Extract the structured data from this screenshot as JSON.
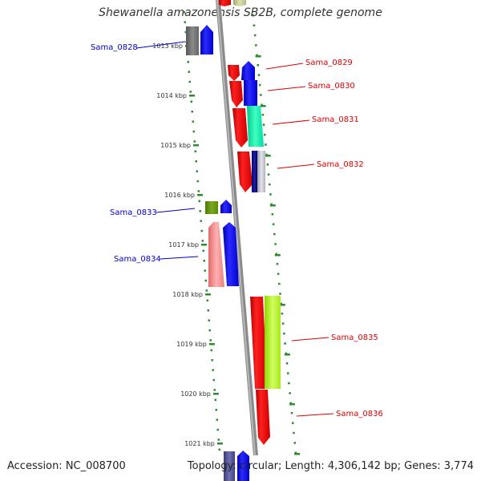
{
  "title": "Shewanella amazonensis SB2B, complete genome",
  "footer": {
    "accession": "Accession: NC_008700",
    "summary": "Topology: circular; Length: 4,306,142 bp; Genes: 3,774"
  },
  "colors": {
    "backbone": "#8a8a8a",
    "tick": "#2e8b2e",
    "blue_label": "#0000cc",
    "red_label": "#dd0000"
  },
  "ruler": [
    {
      "label": "1013 kbp"
    },
    {
      "label": "1014 kbp"
    },
    {
      "label": "1015 kbp"
    },
    {
      "label": "1016 kbp"
    },
    {
      "label": "1017 kbp"
    },
    {
      "label": "1018 kbp"
    },
    {
      "label": "1019 kbp"
    },
    {
      "label": "1020 kbp"
    },
    {
      "label": "1021 kbp"
    }
  ],
  "gene_labels": [
    {
      "name": "Sama_0828",
      "side": "left",
      "color": "#0000cc"
    },
    {
      "name": "Sama_0829",
      "side": "right",
      "color": "#dd0000"
    },
    {
      "name": "Sama_0830",
      "side": "right",
      "color": "#dd0000"
    },
    {
      "name": "Sama_0831",
      "side": "right",
      "color": "#dd0000"
    },
    {
      "name": "Sama_0832",
      "side": "right",
      "color": "#dd0000"
    },
    {
      "name": "Sama_0833",
      "side": "left",
      "color": "#0000cc"
    },
    {
      "name": "Sama_0834",
      "side": "left",
      "color": "#0000cc"
    },
    {
      "name": "Sama_0835",
      "side": "right",
      "color": "#dd0000"
    },
    {
      "name": "Sama_0836",
      "side": "right",
      "color": "#dd0000"
    }
  ]
}
